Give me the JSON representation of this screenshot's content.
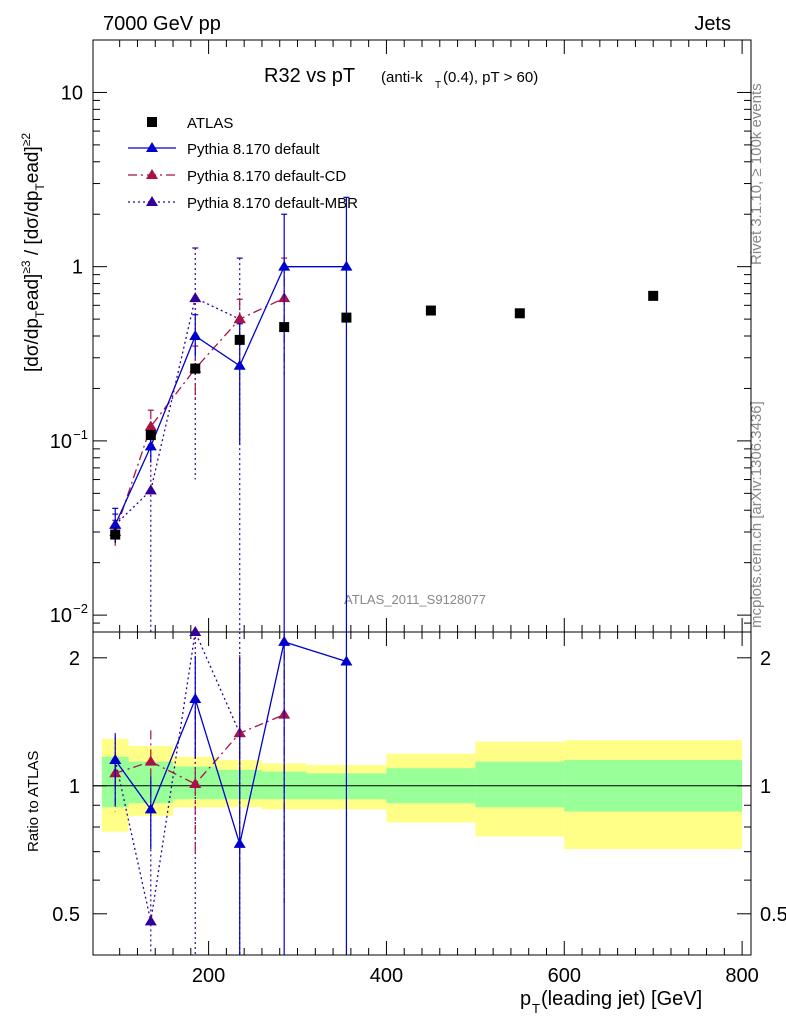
{
  "header": {
    "left": "7000 GeV pp",
    "right": "Jets"
  },
  "title": {
    "main": "R32 vs pT",
    "sub": "(anti-k",
    "sub_t": "T",
    "sub_rest": "(0.4), pT > 60)"
  },
  "side_labels": {
    "rivet": "Rivet 3.1.10, ≥ 100k events",
    "mcplots": "mcplots.cern.ch [arXiv:1306.3436]"
  },
  "watermark": "ATLAS_2011_S9128077",
  "xaxis": {
    "label_p": "p",
    "label_sub": "T",
    "label_rest": "(leading jet) [GeV]",
    "ticks": [
      {
        "v": 200,
        "label": "200"
      },
      {
        "v": 400,
        "label": "400"
      },
      {
        "v": 600,
        "label": "600"
      },
      {
        "v": 800,
        "label": "800"
      }
    ]
  },
  "yaxis_main": {
    "label": "[dσ/dpᵀead]≥3 / [dσ/dpᵀead]≥2",
    "label_parts": {
      "a": "[dσ/dp",
      "b": "T",
      "c": "ead]",
      "d": "≥3",
      "e": " / [dσ/dp",
      "f": "T",
      "g": "ead]",
      "h": "≥2"
    }
  },
  "yaxis_ratio": {
    "label": "Ratio to ATLAS"
  },
  "legend": [
    {
      "name": "ATLAS",
      "color": "#000000",
      "style": "data"
    },
    {
      "name": "Pythia 8.170 default",
      "color": "#0000cc",
      "style": "solid"
    },
    {
      "name": "Pythia 8.170 default-CD",
      "color": "#aa1144",
      "style": "dashdot"
    },
    {
      "name": "Pythia 8.170 default-MBR",
      "color": "#330099",
      "style": "dotted"
    }
  ],
  "chart_data": {
    "type": "scatter",
    "title": "R32 vs pT (anti-kT(0.4), pT > 60)",
    "xlabel": "pT(leading jet) [GeV]",
    "ylabel": "[dσ/dpT ead]≥3 / [dσ/dpT ead]≥2",
    "xlim": [
      70,
      810
    ],
    "ylim": [
      0.008,
      20
    ],
    "yscale": "log",
    "ratio_ylim": [
      0.4,
      2.3
    ],
    "ratio_yticks": [
      {
        "v": 0.5,
        "label": "0.5"
      },
      {
        "v": 1,
        "label": "1"
      },
      {
        "v": 2,
        "label": "2"
      }
    ],
    "main_yticks": [
      {
        "v": 0.01,
        "m": "10",
        "e": "−2"
      },
      {
        "v": 0.1,
        "m": "10",
        "e": "−1"
      },
      {
        "v": 1,
        "m": "1",
        "e": ""
      },
      {
        "v": 10,
        "m": "10",
        "e": ""
      }
    ],
    "data": {
      "x": [
        95,
        135,
        185,
        235,
        285,
        355,
        450,
        550,
        700
      ],
      "y": [
        0.029,
        0.108,
        0.26,
        0.38,
        0.45,
        0.51,
        0.56,
        0.54,
        0.68
      ],
      "yerr_lo": [
        0.003,
        0.008,
        0.02,
        0.03,
        0.03,
        0.03,
        0.03,
        0.03,
        0.04
      ],
      "yerr_hi": [
        0.003,
        0.008,
        0.02,
        0.03,
        0.03,
        0.03,
        0.03,
        0.03,
        0.04
      ]
    },
    "bands": [
      {
        "x0": 80,
        "x1": 110,
        "in_lo": 0.89,
        "in_hi": 1.17,
        "out_lo": 0.78,
        "out_hi": 1.29
      },
      {
        "x0": 110,
        "x1": 160,
        "in_lo": 0.91,
        "in_hi": 1.14,
        "out_lo": 0.85,
        "out_hi": 1.24
      },
      {
        "x0": 160,
        "x1": 210,
        "in_lo": 0.93,
        "in_hi": 1.11,
        "out_lo": 0.89,
        "out_hi": 1.17
      },
      {
        "x0": 210,
        "x1": 260,
        "in_lo": 0.93,
        "in_hi": 1.09,
        "out_lo": 0.89,
        "out_hi": 1.15
      },
      {
        "x0": 260,
        "x1": 310,
        "in_lo": 0.93,
        "in_hi": 1.08,
        "out_lo": 0.88,
        "out_hi": 1.13
      },
      {
        "x0": 310,
        "x1": 400,
        "in_lo": 0.93,
        "in_hi": 1.07,
        "out_lo": 0.88,
        "out_hi": 1.12
      },
      {
        "x0": 400,
        "x1": 500,
        "in_lo": 0.91,
        "in_hi": 1.1,
        "out_lo": 0.82,
        "out_hi": 1.19
      },
      {
        "x0": 500,
        "x1": 600,
        "in_lo": 0.89,
        "in_hi": 1.14,
        "out_lo": 0.76,
        "out_hi": 1.27
      },
      {
        "x0": 600,
        "x1": 800,
        "in_lo": 0.87,
        "in_hi": 1.15,
        "out_lo": 0.71,
        "out_hi": 1.28
      }
    ],
    "series": [
      {
        "name": "Pythia 8.170 default",
        "color": "#0000cc",
        "dash": "",
        "x": [
          95,
          135,
          185,
          235,
          285,
          355
        ],
        "y": [
          0.033,
          0.093,
          0.4,
          0.27,
          1.0,
          1.0
        ],
        "lo": [
          0.026,
          0.075,
          0.3,
          0.095,
          0.0,
          0.0
        ],
        "hi": [
          0.041,
          0.112,
          0.53,
          0.47,
          2.0,
          2.5
        ],
        "ratio": [
          1.15,
          0.88,
          1.6,
          0.73,
          2.18,
          1.96
        ],
        "rlo": [
          0.9,
          0.71,
          1.16,
          0.0,
          0.0,
          0.0
        ],
        "rhi": [
          1.33,
          1.05,
          2.02,
          2.0,
          2.3,
          2.3
        ]
      },
      {
        "name": "Pythia 8.170 default-CD",
        "color": "#aa1144",
        "dash": "9,4,2,4",
        "x": [
          95,
          135,
          185,
          235,
          285
        ],
        "y": [
          0.03,
          0.121,
          0.26,
          0.5,
          0.66
        ],
        "lo": [
          0.025,
          0.1,
          0.17,
          0.35,
          0.24
        ],
        "hi": [
          0.035,
          0.15,
          0.35,
          0.65,
          1.12
        ],
        "ratio": [
          1.07,
          1.14,
          1.01,
          1.33,
          1.47
        ],
        "rlo": [
          0.87,
          0.93,
          0.69,
          0.62,
          0.53
        ],
        "rhi": [
          1.15,
          1.35,
          1.5,
          2.03,
          2.3
        ]
      },
      {
        "name": "Pythia 8.170 default-MBR",
        "color": "#330099",
        "dash": "2,3",
        "x": [
          95,
          135,
          185,
          235
        ],
        "y": [
          0.033,
          0.052,
          0.66,
          0.5
        ],
        "lo": [
          0.028,
          0.0,
          0.06,
          0.0
        ],
        "hi": [
          0.038,
          0.095,
          1.28,
          1.12
        ],
        "ratio": [
          1.15,
          0.48,
          2.3,
          1.33
        ],
        "rlo": [
          0.97,
          0.0,
          0.18,
          0.0
        ],
        "rhi": [
          1.3,
          0.88,
          2.3,
          2.3
        ]
      }
    ]
  }
}
